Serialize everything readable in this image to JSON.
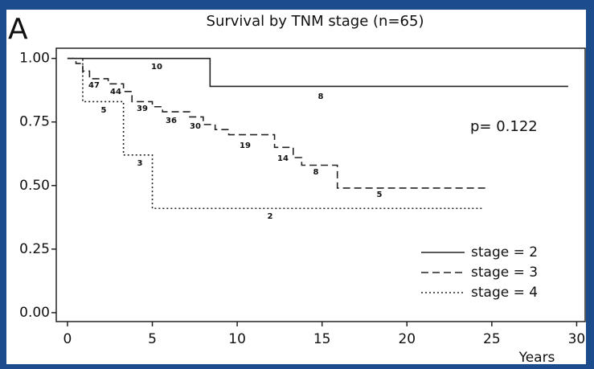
{
  "panel_label": "A",
  "chart_data": {
    "type": "step",
    "title": "Survival by TNM stage (n=65)",
    "xlabel": "Years",
    "annotation": "p= 0.122",
    "xlim": [
      -0.66,
      30.5
    ],
    "ylim": [
      -0.035,
      1.04
    ],
    "xticks": [
      0,
      5,
      10,
      15,
      20,
      25,
      30
    ],
    "yticks": [
      {
        "value": 0,
        "label": "0.00"
      },
      {
        "value": 0.25,
        "label": "0.25"
      },
      {
        "value": 0.5,
        "label": "0.50"
      },
      {
        "value": 0.75,
        "label": "0.75"
      },
      {
        "value": 1,
        "label": "1.00"
      }
    ],
    "legend": "lower right",
    "series": [
      {
        "name": "stage = 2",
        "color": "#222222",
        "style": "solid",
        "x": [
          0,
          8.4,
          29.5
        ],
        "values": [
          1,
          0.89,
          0.89
        ]
      },
      {
        "name": "stage = 3",
        "color": "#222222",
        "style": "dashed",
        "x": [
          0,
          0.5,
          0.9,
          1.3,
          2.4,
          3.3,
          3.8,
          5,
          5.6,
          7.2,
          8,
          8.7,
          9.5,
          12.2,
          13.3,
          13.8,
          15.9,
          24.7
        ],
        "values": [
          1,
          0.98,
          0.95,
          0.92,
          0.9,
          0.87,
          0.83,
          0.81,
          0.79,
          0.77,
          0.74,
          0.72,
          0.7,
          0.65,
          0.61,
          0.58,
          0.49,
          0.49
        ]
      },
      {
        "name": "stage = 4",
        "color": "#222222",
        "style": "dotted",
        "x": [
          0,
          0.9,
          3.3,
          5,
          24.5
        ],
        "values": [
          1,
          0.83,
          0.62,
          0.41,
          0.41
        ]
      }
    ],
    "risk_labels": [
      "10",
      "8",
      "47",
      "44",
      "5",
      "39",
      "36",
      "30",
      "19",
      "14",
      "8",
      "5",
      "3",
      "2"
    ]
  }
}
